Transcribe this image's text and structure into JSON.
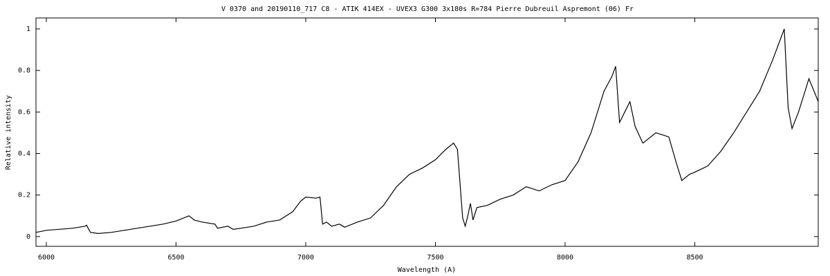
{
  "chart_data": {
    "type": "line",
    "title": "V 0370 and  20190110_717    C8 - ATIK 414EX - UVEX3 G300 3x180s  R=784  Pierre Dubreuil  Aspremont (06) Fr",
    "x_label": "Wavelength (A)",
    "y_label": "Relative intensity",
    "xlim": [
      5960,
      8976
    ],
    "ylim": [
      -0.047,
      1.053
    ],
    "xticks": [
      6000,
      6500,
      7000,
      7500,
      8000,
      8500
    ],
    "yticks": [
      0,
      0.2,
      0.4,
      0.6,
      0.8,
      1
    ],
    "grid": false,
    "series": [
      {
        "color": "#000000",
        "x": [
          5960,
          6000,
          6050,
          6100,
          6150,
          6155,
          6170,
          6200,
          6250,
          6300,
          6350,
          6400,
          6450,
          6500,
          6530,
          6550,
          6570,
          6600,
          6650,
          6660,
          6700,
          6720,
          6750,
          6800,
          6850,
          6900,
          6950,
          6980,
          7000,
          7040,
          7055,
          7065,
          7080,
          7100,
          7130,
          7150,
          7200,
          7250,
          7300,
          7350,
          7400,
          7450,
          7500,
          7540,
          7570,
          7585,
          7605,
          7615,
          7625,
          7635,
          7645,
          7660,
          7700,
          7750,
          7800,
          7850,
          7900,
          7950,
          8000,
          8050,
          8100,
          8150,
          8180,
          8195,
          8210,
          8230,
          8250,
          8270,
          8300,
          8350,
          8400,
          8430,
          8450,
          8480,
          8500,
          8550,
          8600,
          8650,
          8700,
          8750,
          8800,
          8830,
          8845,
          8860,
          8875,
          8900,
          8940,
          8960,
          8976
        ],
        "values": [
          0.02,
          0.03,
          0.035,
          0.04,
          0.05,
          0.055,
          0.02,
          0.015,
          0.02,
          0.03,
          0.04,
          0.05,
          0.06,
          0.075,
          0.09,
          0.1,
          0.08,
          0.07,
          0.06,
          0.04,
          0.05,
          0.035,
          0.04,
          0.05,
          0.07,
          0.08,
          0.12,
          0.17,
          0.19,
          0.185,
          0.19,
          0.06,
          0.07,
          0.05,
          0.06,
          0.045,
          0.07,
          0.09,
          0.15,
          0.24,
          0.3,
          0.33,
          0.37,
          0.42,
          0.45,
          0.42,
          0.09,
          0.05,
          0.1,
          0.16,
          0.08,
          0.14,
          0.15,
          0.18,
          0.2,
          0.24,
          0.22,
          0.25,
          0.27,
          0.36,
          0.5,
          0.7,
          0.77,
          0.82,
          0.55,
          0.6,
          0.65,
          0.53,
          0.45,
          0.5,
          0.48,
          0.35,
          0.27,
          0.3,
          0.31,
          0.34,
          0.41,
          0.5,
          0.6,
          0.7,
          0.85,
          0.95,
          1.0,
          0.62,
          0.52,
          0.6,
          0.76,
          0.7,
          0.65
        ]
      }
    ]
  }
}
